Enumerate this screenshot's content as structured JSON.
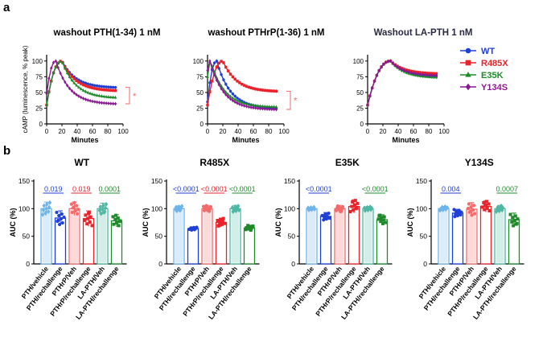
{
  "panel_labels": {
    "a": "a",
    "b": "b"
  },
  "colors": {
    "WT": "#1f3fd6",
    "R485X": "#e8232a",
    "E35K": "#1f8a2a",
    "Y134S": "#8a1a8f",
    "light_blue": "#6cb4ea",
    "light_red": "#f26a6a",
    "light_green": "#4fb7a4"
  },
  "legend": [
    {
      "name": "WT",
      "color": "#1f3fd6",
      "marker": "circle"
    },
    {
      "name": "R485X",
      "color": "#e8232a",
      "marker": "square"
    },
    {
      "name": "E35K",
      "color": "#1f8a2a",
      "marker": "triangle"
    },
    {
      "name": "Y134S",
      "color": "#8a1a8f",
      "marker": "diamond"
    }
  ],
  "chart_data": [
    {
      "type": "line",
      "title": "washout PTH(1-34) 1 nM",
      "xlabel": "Minutes",
      "ylabel": "cAMP (luminescence, % peak)",
      "xlim": [
        0,
        100
      ],
      "ylim": [
        0,
        110
      ],
      "xticks": [
        "0",
        "20",
        "40",
        "60",
        "80",
        "100"
      ],
      "yticks": [
        "0",
        "25",
        "50",
        "75",
        "100"
      ],
      "annotation": "*",
      "series": [
        {
          "name": "WT",
          "peak_t": 20,
          "start": 30,
          "end": 58
        },
        {
          "name": "R485X",
          "peak_t": 20,
          "start": 30,
          "end": 53
        },
        {
          "name": "E35K",
          "peak_t": 20,
          "start": 30,
          "end": 42
        },
        {
          "name": "Y134S",
          "peak_t": 12,
          "start": 48,
          "end": 32
        }
      ]
    },
    {
      "type": "line",
      "title": "washout PTHrP(1-36) 1 nM",
      "xlabel": "Minutes",
      "ylabel": "",
      "xlim": [
        0,
        100
      ],
      "ylim": [
        0,
        110
      ],
      "xticks": [
        "0",
        "20",
        "40",
        "60",
        "80",
        "100"
      ],
      "yticks": [
        "0",
        "25",
        "50",
        "75",
        "100"
      ],
      "annotation": "*",
      "series": [
        {
          "name": "WT",
          "peak_t": 12,
          "start": 35,
          "end": 25
        },
        {
          "name": "R485X",
          "peak_t": 20,
          "start": 30,
          "end": 52
        },
        {
          "name": "E35K",
          "peak_t": 4,
          "start": 75,
          "end": 27
        },
        {
          "name": "Y134S",
          "peak_t": 3,
          "start": 85,
          "end": 23
        }
      ]
    },
    {
      "type": "line",
      "title": "Washout LA-PTH 1 nM",
      "xlabel": "Minutes",
      "ylabel": "",
      "xlim": [
        0,
        100
      ],
      "ylim": [
        0,
        110
      ],
      "xticks": [
        "0",
        "20",
        "40",
        "60",
        "80",
        "100"
      ],
      "yticks": [
        "0",
        "25",
        "50",
        "75",
        "100"
      ],
      "annotation": "",
      "series": [
        {
          "name": "WT",
          "peak_t": 30,
          "start": 30,
          "end": 76
        },
        {
          "name": "R485X",
          "peak_t": 30,
          "start": 30,
          "end": 80
        },
        {
          "name": "E35K",
          "peak_t": 30,
          "start": 30,
          "end": 74
        },
        {
          "name": "Y134S",
          "peak_t": 30,
          "start": 30,
          "end": 77
        }
      ]
    },
    {
      "type": "bar",
      "title": "WT",
      "ylabel": "AUC (%)",
      "ylim": [
        0,
        150
      ],
      "yticks": [
        "0",
        "50",
        "100",
        "150"
      ],
      "categories": [
        "PTH/vehicle",
        "PTH/rechallenge",
        "PTHrP/Veh",
        "PTHrP/rechallenge",
        "LA-PTH/Veh",
        "LA-PTH/rechallenge"
      ],
      "values": [
        100,
        83,
        100,
        82,
        100,
        78
      ],
      "errors": [
        12,
        13,
        12,
        14,
        10,
        11
      ],
      "pvalues": [
        {
          "text": "0.019",
          "from": 0,
          "to": 1,
          "color": "#1f3fd6"
        },
        {
          "text": "0.019",
          "from": 2,
          "to": 3,
          "color": "#e8232a"
        },
        {
          "text": "0.0001",
          "from": 4,
          "to": 5,
          "color": "#1f8a2a"
        }
      ]
    },
    {
      "type": "bar",
      "title": "R485X",
      "ylabel": "AUC (%)",
      "ylim": [
        0,
        150
      ],
      "yticks": [
        "0",
        "50",
        "100",
        "150"
      ],
      "categories": [
        "PTH/vehicle",
        "PTH/rechallenge",
        "PTHrP/Veh",
        "PTHrP/rechallenge",
        "LA-PTH/Veh",
        "LA-PTH/rechallenge"
      ],
      "values": [
        100,
        64,
        100,
        75,
        100,
        65
      ],
      "errors": [
        5,
        3,
        6,
        8,
        6,
        5
      ],
      "pvalues": [
        {
          "text": "<0.0001",
          "from": 0,
          "to": 1,
          "color": "#1f3fd6"
        },
        {
          "text": "<0.0001",
          "from": 2,
          "to": 3,
          "color": "#e8232a"
        },
        {
          "text": "<0.0001",
          "from": 4,
          "to": 5,
          "color": "#1f8a2a"
        }
      ]
    },
    {
      "type": "bar",
      "title": "E35K",
      "ylabel": "AUC (%)",
      "ylim": [
        0,
        150
      ],
      "yticks": [
        "0",
        "50",
        "100",
        "150"
      ],
      "categories": [
        "PTH/vehicle",
        "PTH/rechallenge",
        "PTHrP/Veh",
        "PTHrP/rechallenge",
        "LA-PTH/Veh",
        "LA-PTH/rechallenge"
      ],
      "values": [
        100,
        86,
        100,
        104,
        100,
        80
      ],
      "errors": [
        3,
        7,
        6,
        12,
        4,
        9
      ],
      "pvalues": [
        {
          "text": "<0.0001",
          "from": 0,
          "to": 1,
          "color": "#1f3fd6"
        },
        {
          "text": "<0.0001",
          "from": 4,
          "to": 5,
          "color": "#1f8a2a"
        }
      ]
    },
    {
      "type": "bar",
      "title": "Y134S",
      "ylabel": "AUC (%)",
      "ylim": [
        0,
        150
      ],
      "yticks": [
        "0",
        "50",
        "100",
        "150"
      ],
      "categories": [
        "PTH/vehicle",
        "PTH/rechallenge",
        "PTHrP/Veh",
        "PTHrP/rechallenge",
        "LA-PTH/Veh",
        "LA-PTH/rechallenge"
      ],
      "values": [
        100,
        92,
        99,
        104,
        100,
        80
      ],
      "errors": [
        4,
        7,
        12,
        10,
        6,
        12
      ],
      "pvalues": [
        {
          "text": "0.004",
          "from": 0,
          "to": 1,
          "color": "#1f3fd6"
        },
        {
          "text": "0.0007",
          "from": 4,
          "to": 5,
          "color": "#1f8a2a"
        }
      ]
    }
  ]
}
